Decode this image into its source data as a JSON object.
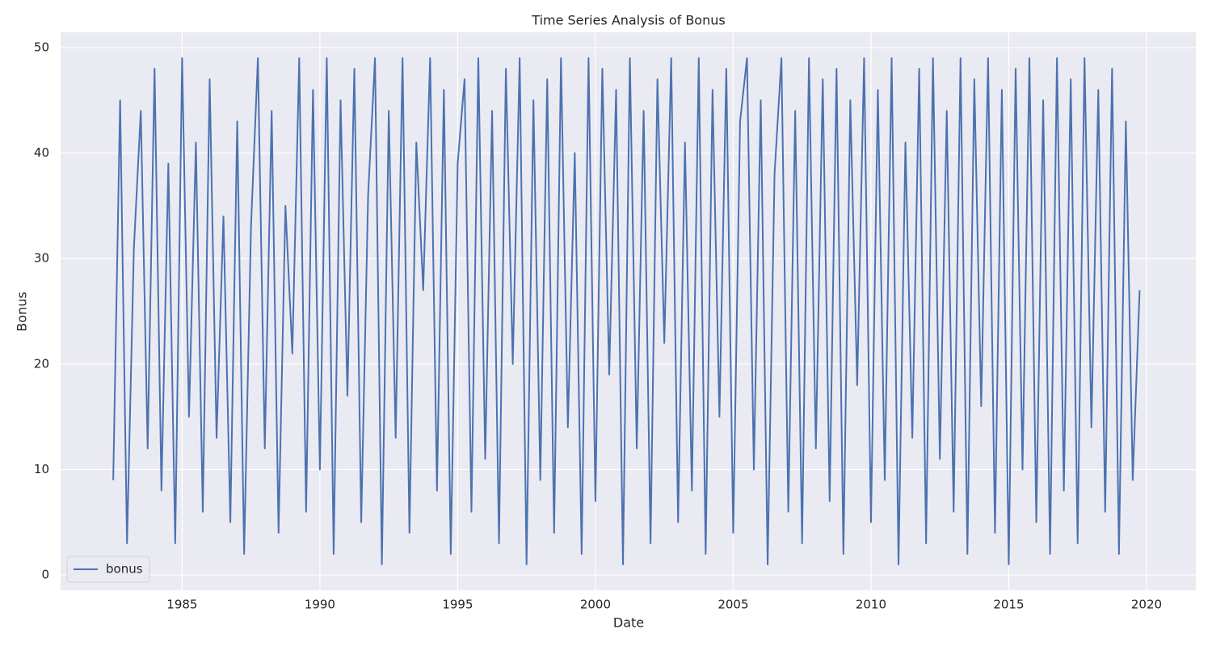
{
  "chart_data": {
    "type": "line",
    "title": "Time Series Analysis of Bonus",
    "xlabel": "Date",
    "ylabel": "Bonus",
    "x": [
      1982.5,
      1982.75,
      1983,
      1983.25,
      1983.5,
      1983.75,
      1984,
      1984.25,
      1984.5,
      1984.75,
      1985,
      1985.25,
      1985.5,
      1985.75,
      1986,
      1986.25,
      1986.5,
      1986.75,
      1987,
      1987.25,
      1987.5,
      1987.75,
      1988,
      1988.25,
      1988.5,
      1988.75,
      1989,
      1989.25,
      1989.5,
      1989.75,
      1990,
      1990.25,
      1990.5,
      1990.75,
      1991,
      1991.25,
      1991.5,
      1991.75,
      1992,
      1992.25,
      1992.5,
      1992.75,
      1993,
      1993.25,
      1993.5,
      1993.75,
      1994,
      1994.25,
      1994.5,
      1994.75,
      1995,
      1995.25,
      1995.5,
      1995.75,
      1996,
      1996.25,
      1996.5,
      1996.75,
      1997,
      1997.25,
      1997.5,
      1997.75,
      1998,
      1998.25,
      1998.5,
      1998.75,
      1999,
      1999.25,
      1999.5,
      1999.75,
      2000,
      2000.25,
      2000.5,
      2000.75,
      2001,
      2001.25,
      2001.5,
      2001.75,
      2002,
      2002.25,
      2002.5,
      2002.75,
      2003,
      2003.25,
      2003.5,
      2003.75,
      2004,
      2004.25,
      2004.5,
      2004.75,
      2005,
      2005.25,
      2005.5,
      2005.75,
      2006,
      2006.25,
      2006.5,
      2006.75,
      2007,
      2007.25,
      2007.5,
      2007.75,
      2008,
      2008.25,
      2008.5,
      2008.75,
      2009,
      2009.25,
      2009.5,
      2009.75,
      2010,
      2010.25,
      2010.5,
      2010.75,
      2011,
      2011.25,
      2011.5,
      2011.75,
      2012,
      2012.25,
      2012.5,
      2012.75,
      2013,
      2013.25,
      2013.5,
      2013.75,
      2014,
      2014.25,
      2014.5,
      2014.75,
      2015,
      2015.25,
      2015.5,
      2015.75,
      2016,
      2016.25,
      2016.5,
      2016.75,
      2017,
      2017.25,
      2017.5,
      2017.75,
      2018,
      2018.25,
      2018.5,
      2018.75,
      2019,
      2019.25,
      2019.5,
      2019.75
    ],
    "series": [
      {
        "name": "bonus",
        "color": "#4c72b0",
        "values": [
          9,
          45,
          3,
          31,
          44,
          12,
          48,
          8,
          39,
          3,
          49,
          15,
          41,
          6,
          47,
          13,
          34,
          5,
          43,
          2,
          33,
          49,
          12,
          44,
          4,
          35,
          21,
          49,
          6,
          46,
          10,
          49,
          2,
          45,
          17,
          48,
          5,
          36,
          49,
          1,
          44,
          13,
          49,
          4,
          41,
          27,
          49,
          8,
          46,
          2,
          39,
          47,
          6,
          49,
          11,
          44,
          3,
          48,
          20,
          49,
          1,
          45,
          9,
          47,
          4,
          49,
          14,
          40,
          2,
          49,
          7,
          48,
          19,
          46,
          1,
          49,
          12,
          44,
          3,
          47,
          22,
          49,
          5,
          41,
          8,
          49,
          2,
          46,
          15,
          48,
          4,
          43,
          49,
          10,
          45,
          1,
          38,
          49,
          6,
          44,
          3,
          49,
          12,
          47,
          7,
          48,
          2,
          45,
          18,
          49,
          5,
          46,
          9,
          49,
          1,
          41,
          13,
          48,
          3,
          49,
          11,
          44,
          6,
          49,
          2,
          47,
          16,
          49,
          4,
          46,
          1,
          48,
          10,
          49,
          5,
          45,
          2,
          49,
          8,
          47,
          3,
          49,
          14,
          46,
          6,
          48,
          2,
          43,
          9,
          27
        ]
      }
    ],
    "xlim": [
      1980.59,
      2021.79
    ],
    "xticks": [
      1985,
      1990,
      1995,
      2000,
      2005,
      2010,
      2015,
      2020
    ],
    "ylim": [
      -1.45,
      51.45
    ],
    "yticks": [
      0,
      10,
      20,
      30,
      40,
      50
    ],
    "grid": true,
    "legend": "lower left"
  }
}
